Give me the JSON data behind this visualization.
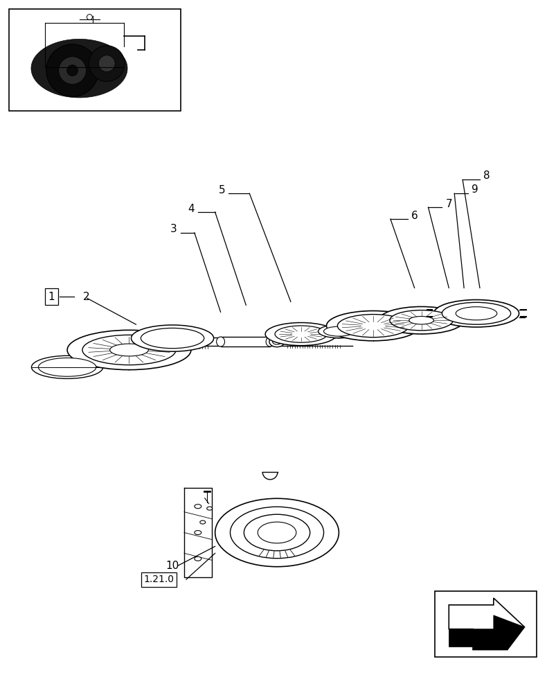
{
  "bg_color": "#ffffff",
  "fig_width": 8.04,
  "fig_height": 10.0,
  "label_fs": 11,
  "lw_line": 0.8
}
